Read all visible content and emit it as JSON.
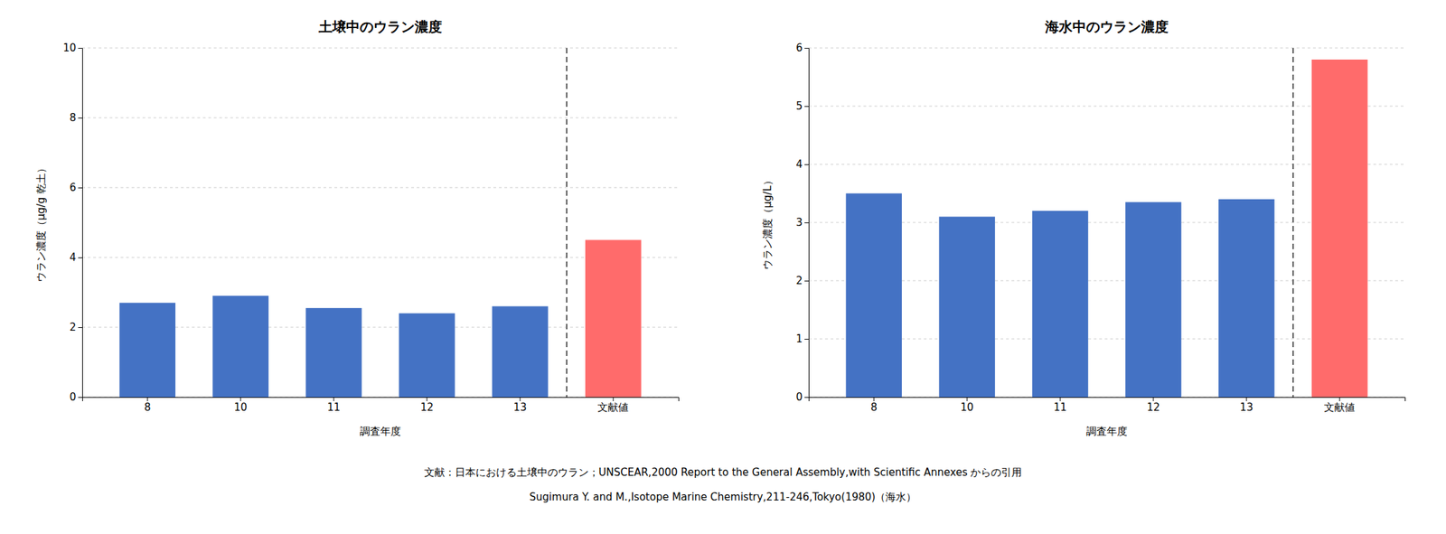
{
  "chart_data": [
    {
      "type": "bar",
      "title": "土壌中のウラン濃度",
      "x_label": "調査年度",
      "y_label": "ウラン濃度（μg/g 乾土）",
      "categories": [
        "8",
        "10",
        "11",
        "12",
        "13",
        "文献値"
      ],
      "values": [
        2.7,
        2.9,
        2.55,
        2.4,
        2.6,
        4.5
      ],
      "colors": [
        "#4472C4",
        "#4472C4",
        "#4472C4",
        "#4472C4",
        "#4472C4",
        "#FF6B6B"
      ],
      "ylim": [
        0,
        10
      ],
      "yticks": [
        0,
        2,
        4,
        6,
        8,
        10
      ],
      "grid": true,
      "annotations": [
        "文献：日本における土壌中のウラン；UNSCEAR,2000 Report to the General Assembly,with Scientific Annexes からの引用"
      ]
    },
    {
      "type": "bar",
      "title": "海水中のウラン濃度",
      "x_label": "調査年度",
      "y_label": "ウラン濃度（μg/L）",
      "categories": [
        "8",
        "10",
        "11",
        "12",
        "13",
        "文献値"
      ],
      "values": [
        3.5,
        3.1,
        3.2,
        3.35,
        3.4,
        5.8
      ],
      "colors": [
        "#4472C4",
        "#4472C4",
        "#4472C4",
        "#4472C4",
        "#4472C4",
        "#FF6B6B"
      ],
      "ylim": [
        0,
        6
      ],
      "yticks": [
        0,
        1,
        2,
        3,
        4,
        5,
        6
      ],
      "grid": true,
      "annotations": [
        "Sugimura Y. and M.,Isotope Marine Chemistry,211-246,Tokyo(1980)（海水）"
      ]
    }
  ]
}
